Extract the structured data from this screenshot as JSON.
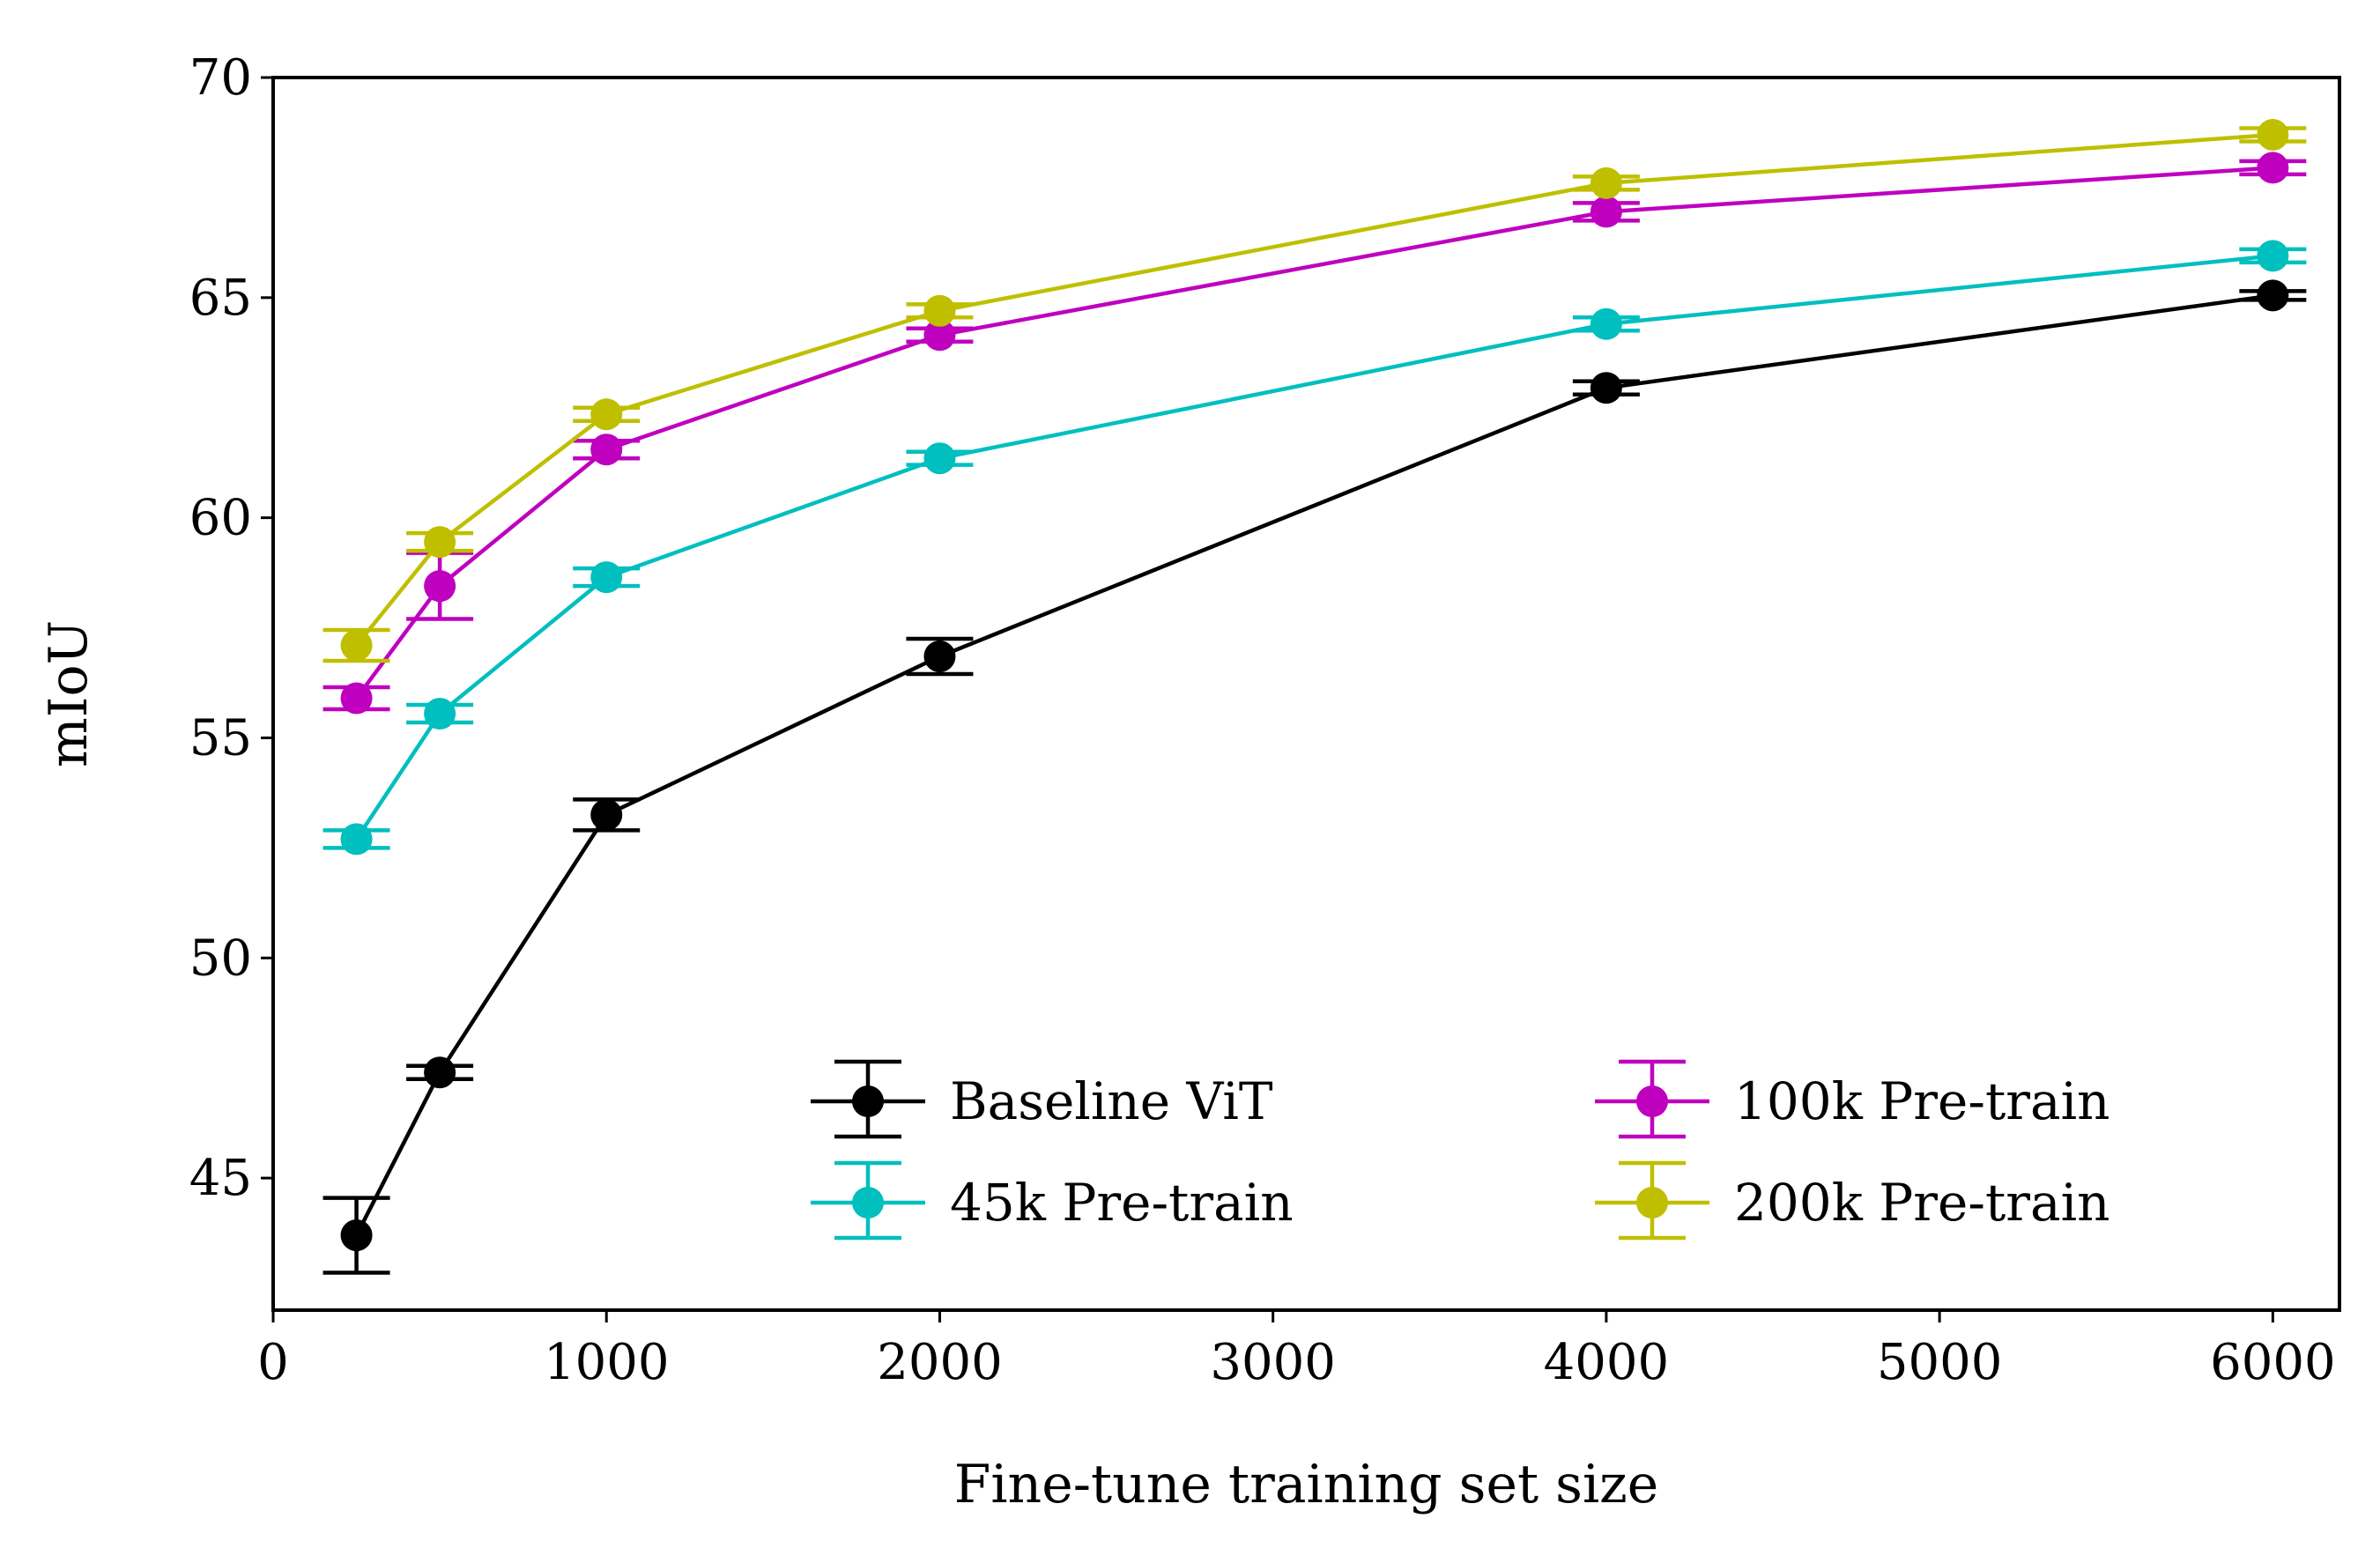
{
  "chart_data": {
    "type": "line",
    "title": "",
    "xlabel": "Fine-tune training set size",
    "ylabel": "mIoU",
    "xlim": [
      0,
      6200
    ],
    "ylim": [
      42,
      70
    ],
    "xticks": [
      0,
      1000,
      2000,
      3000,
      4000,
      5000,
      6000
    ],
    "yticks": [
      45,
      50,
      55,
      60,
      65,
      70
    ],
    "grid": false,
    "legend_position": "bottom-right",
    "legend_columns": 2,
    "x": [
      250,
      500,
      1000,
      2000,
      4000,
      6000
    ],
    "series": [
      {
        "name": "Baseline ViT",
        "color": "#000000",
        "values": [
          43.7,
          47.4,
          53.25,
          56.85,
          62.95,
          65.05
        ],
        "errors": [
          0.85,
          0.15,
          0.35,
          0.4,
          0.15,
          0.1
        ]
      },
      {
        "name": "45k Pre-train",
        "color": "#00bfbf",
        "values": [
          52.7,
          55.55,
          58.65,
          61.35,
          64.4,
          65.95
        ],
        "errors": [
          0.2,
          0.2,
          0.2,
          0.15,
          0.15,
          0.15
        ]
      },
      {
        "name": "100k Pre-train",
        "color": "#bf00bf",
        "values": [
          55.9,
          58.45,
          61.55,
          64.15,
          66.95,
          67.95
        ],
        "errors": [
          0.25,
          0.75,
          0.2,
          0.15,
          0.2,
          0.15
        ]
      },
      {
        "name": "200k Pre-train",
        "color": "#bfbf00",
        "values": [
          57.1,
          59.45,
          62.35,
          64.7,
          67.6,
          68.7
        ],
        "errors": [
          0.35,
          0.2,
          0.15,
          0.15,
          0.15,
          0.15
        ]
      }
    ]
  }
}
